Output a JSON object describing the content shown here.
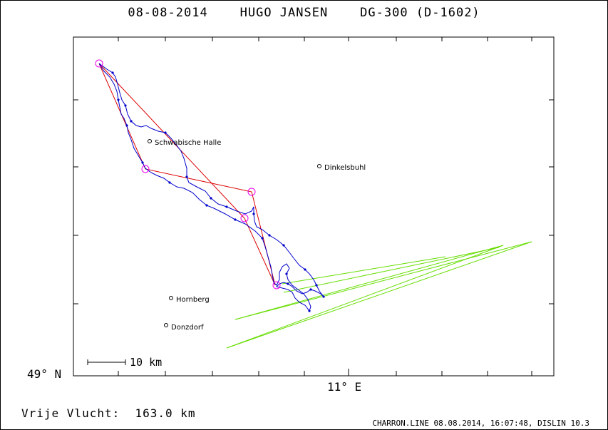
{
  "title": "08-08-2014    HUGO JANSEN    DG-300 (D-1602)",
  "axes": {
    "x_label": "11° E",
    "y_label": "49° N"
  },
  "scale_bar": {
    "label": "10 km"
  },
  "places": [
    {
      "name": "Schwabische Halle"
    },
    {
      "name": "Dinkelsbuhl"
    },
    {
      "name": "Hornberg"
    },
    {
      "name": "Donzdorf"
    }
  ],
  "footer": {
    "distance": "Vrije Vlucht:  163.0 km",
    "credit": "CHARRON.LINE 08.08.2014, 16:07:48, DISLIN 10.3"
  },
  "colors": {
    "track": "#0000cc",
    "task": "#dd0000",
    "turnpoint": "#ee00ee",
    "extra_lines": "#66dd00",
    "frame": "#000000"
  }
}
